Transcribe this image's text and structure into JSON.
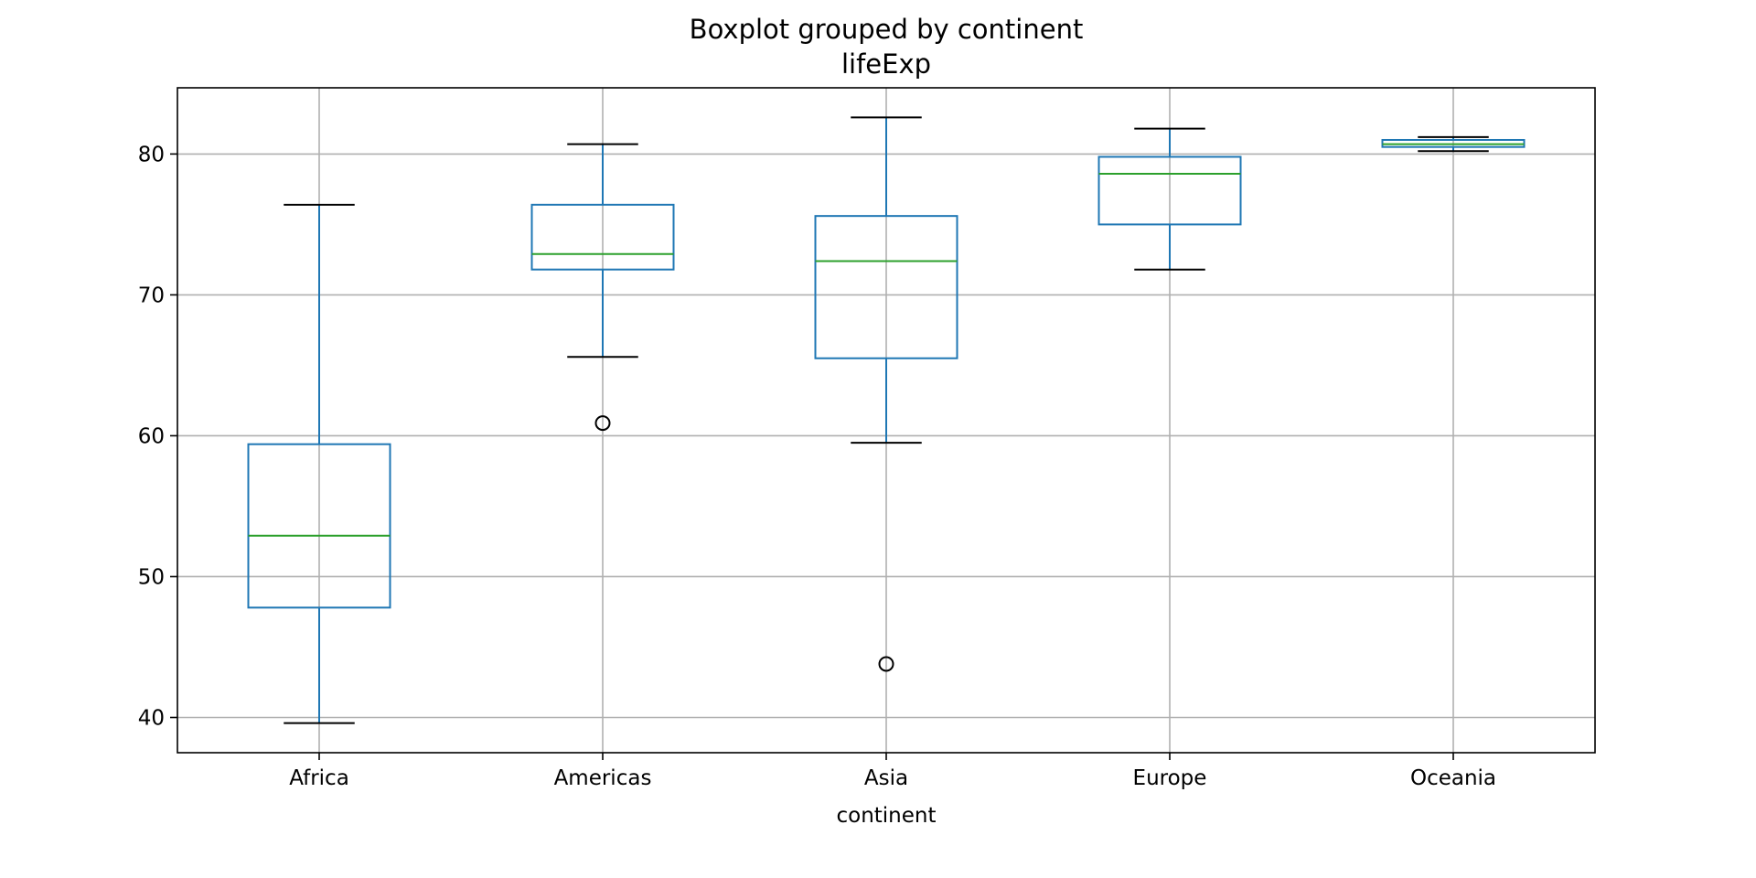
{
  "chart_data": {
    "type": "box",
    "title": "Boxplot grouped by continent",
    "subtitle": "lifeExp",
    "xlabel": "continent",
    "ylabel": "",
    "ylim": [
      37.5,
      84.7
    ],
    "yticks": [
      40,
      50,
      60,
      70,
      80
    ],
    "grid": true,
    "categories": [
      "Africa",
      "Americas",
      "Asia",
      "Europe",
      "Oceania"
    ],
    "boxes": [
      {
        "category": "Africa",
        "whisker_low": 39.6,
        "q1": 47.8,
        "median": 52.9,
        "q3": 59.4,
        "whisker_high": 76.4,
        "outliers": []
      },
      {
        "category": "Americas",
        "whisker_low": 65.6,
        "q1": 71.8,
        "median": 72.9,
        "q3": 76.4,
        "whisker_high": 80.7,
        "outliers": [
          60.9
        ]
      },
      {
        "category": "Asia",
        "whisker_low": 59.5,
        "q1": 65.5,
        "median": 72.4,
        "q3": 75.6,
        "whisker_high": 82.6,
        "outliers": [
          43.8
        ]
      },
      {
        "category": "Europe",
        "whisker_low": 71.8,
        "q1": 75.0,
        "median": 78.6,
        "q3": 79.8,
        "whisker_high": 81.8,
        "outliers": []
      },
      {
        "category": "Oceania",
        "whisker_low": 80.2,
        "q1": 80.5,
        "median": 80.7,
        "q3": 81.0,
        "whisker_high": 81.2,
        "outliers": []
      }
    ],
    "colors": {
      "box": "#1f77b4",
      "median": "#2ca02c",
      "whisker_cap": "#000000",
      "grid": "#b0b0b0",
      "outlier": "#000000"
    }
  }
}
